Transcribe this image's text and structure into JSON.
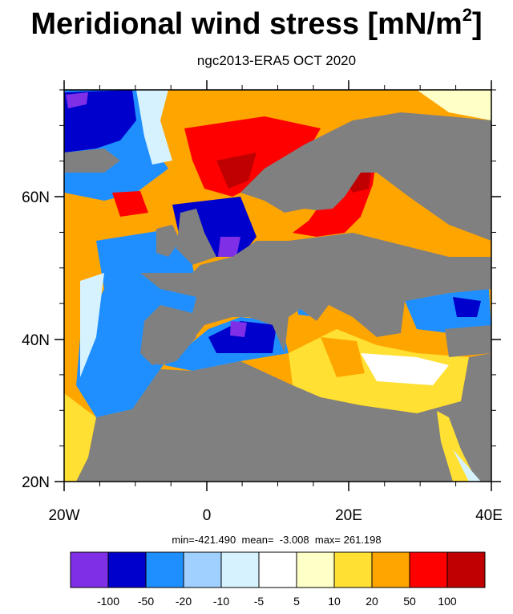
{
  "title": {
    "main": "Meridional wind stress [mN/m",
    "sup": "2",
    "close": "]"
  },
  "subtitle": "ngc2013-ERA5  OCT 2020",
  "stats": "min=-421.490  mean=  -3.008  max= 261.198",
  "map": {
    "lon_range": [
      -20,
      40
    ],
    "lat_range": [
      20,
      75
    ],
    "x_tick_labels": [
      "20W",
      "0",
      "20E",
      "40E"
    ],
    "y_tick_labels": [
      "20N",
      "40N",
      "60N"
    ],
    "land_color": "#808080",
    "field": "meridional wind stress",
    "units": "mN/m2"
  },
  "colorbar": {
    "labels": [
      "-100",
      "-50",
      "-20",
      "-10",
      "-5",
      "5",
      "10",
      "20",
      "50",
      "100"
    ],
    "colors": [
      "#7f2fe6",
      "#0000cc",
      "#1f8fff",
      "#9fd0ff",
      "#d6f2ff",
      "#ffffff",
      "#ffffc8",
      "#ffe033",
      "#ffa500",
      "#ff0000",
      "#c00000"
    ]
  },
  "colors": {
    "land": "#808080",
    "strong_negative": "#0000cc",
    "strong_positive": "#ff0000"
  }
}
